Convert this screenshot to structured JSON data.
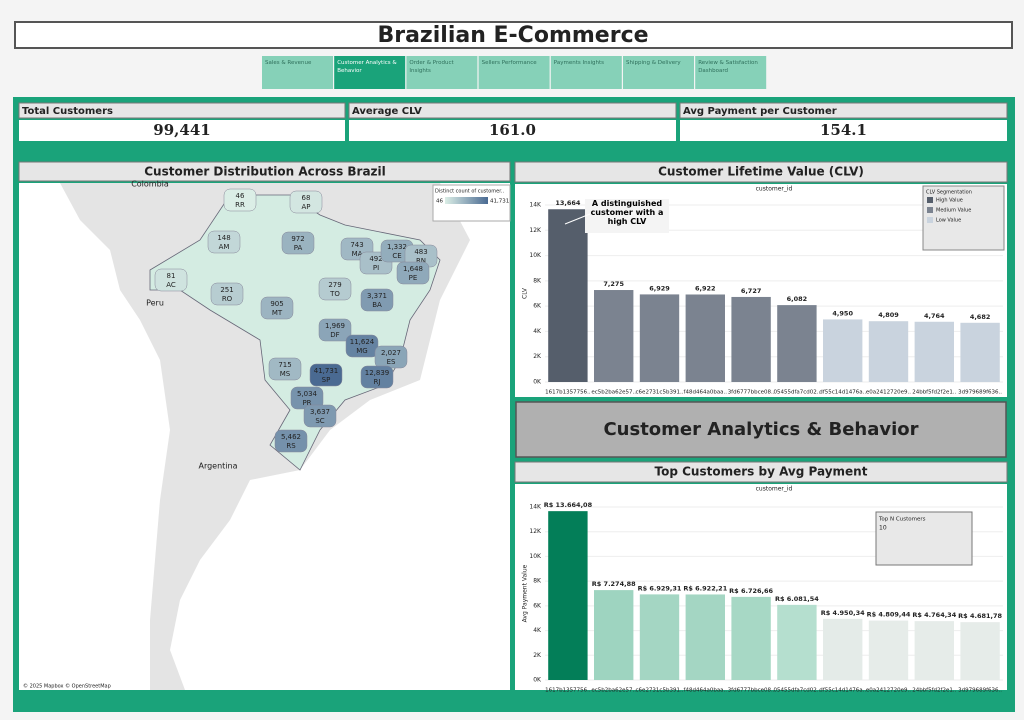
{
  "header": {
    "title": "Brazilian E-Commerce"
  },
  "nav": {
    "tabs": [
      "Sales & Revenue",
      "Customer Analytics & Behavior",
      "Order & Product Insights",
      "Sellers Performance",
      "Payments Insights",
      "Shipping & Delivery",
      "Review & Satisfaction Dashboard"
    ]
  },
  "kpis": [
    {
      "title": "Total Customers",
      "value": "99,441"
    },
    {
      "title": "Average CLV",
      "value": "161.0"
    },
    {
      "title": "Avg Payment per Customer",
      "value": "154.1"
    }
  ],
  "map": {
    "title": "Customer Distribution Across Brazil",
    "states": [
      "RR",
      "AP",
      "AM",
      "PA",
      "AC",
      "RO",
      "MA",
      "PI",
      "CE",
      "RN",
      "PE",
      "TO",
      "BA",
      "MT",
      "DF",
      "MG",
      "ES",
      "MS",
      "SP",
      "RJ",
      "PR",
      "SC",
      "RS"
    ],
    "values": [
      46,
      68,
      148,
      972,
      81,
      251,
      743,
      492,
      1332,
      483,
      1648,
      279,
      3371,
      905,
      1969,
      11624,
      2027,
      715,
      41731,
      12839,
      5034,
      3637,
      5462
    ],
    "value_labels": [
      "46",
      "68",
      "148",
      "972",
      "81",
      "251",
      "743",
      "492",
      "1,332",
      "483",
      "1,648",
      "279",
      "3,371",
      "905",
      "1,969",
      "11,624",
      "2,027",
      "715",
      "41,731",
      "12,839",
      "5,034",
      "3,637",
      "5,462"
    ],
    "legend_title": "Distinct count of customer..",
    "color_low": "#dbeee6",
    "color_high": "#4a6a92",
    "country_labels": [
      "Colombia",
      "Peru",
      "Argentina"
    ],
    "credit": "© 2025 Mapbox © OpenStreetMap"
  },
  "banner": "Customer Analytics & Behavior",
  "chart_data": [
    {
      "type": "bar",
      "title": "Customer Lifetime Value (CLV)",
      "x_label": "customer_id",
      "y_label": "CLV",
      "categories": [
        "1617b1357756..",
        "ec5b2ba62e57..",
        "c6e2731c5b391..",
        "f48d464a0baa..",
        "3fd6777bbce08..",
        "05455dfa7cd02..",
        "df55c14d1476a..",
        "e0a2412720e9..",
        "24bbf5fd2f2e1..",
        "3d979689f636.."
      ],
      "values": [
        13664,
        7275,
        6929,
        6922,
        6727,
        6082,
        4950,
        4809,
        4764,
        4682
      ],
      "value_labels": [
        "13,664",
        "7,275",
        "6,929",
        "6,922",
        "6,727",
        "6,082",
        "4,950",
        "4,809",
        "4,764",
        "4,682"
      ],
      "colors": [
        "#555e6b",
        "#7b8390",
        "#7b8390",
        "#7b8390",
        "#7b8390",
        "#7b8390",
        "#c9d3de",
        "#c9d3de",
        "#c9d3de",
        "#c9d3de"
      ],
      "ylim": [
        0,
        14000
      ],
      "yticks": [
        {
          "value": 0,
          "label": "0K"
        },
        {
          "value": 2000,
          "label": "2K"
        },
        {
          "value": 4000,
          "label": "4K"
        },
        {
          "value": 6000,
          "label": "6K"
        },
        {
          "value": 8000,
          "label": "8K"
        },
        {
          "value": 10000,
          "label": "10K"
        },
        {
          "value": 12000,
          "label": "12K"
        },
        {
          "value": 14000,
          "label": "14K"
        }
      ],
      "grid": true,
      "legend": {
        "title": "CLV Segmentation",
        "items": [
          {
            "name": "High Value",
            "color": "#555e6b"
          },
          {
            "name": "Medium Value",
            "color": "#7b8390"
          },
          {
            "name": "Low Value",
            "color": "#c9d3de"
          }
        ]
      },
      "annotation": "A distinguished customer with a high CLV"
    },
    {
      "type": "bar",
      "title": "Top Customers by Avg Payment",
      "x_label": "customer_id",
      "y_label": "Avg Payment Value",
      "categories": [
        "1617b1357756..",
        "ec5b2ba62e57..",
        "c6e2731c5b391..",
        "f48d464a0baa..",
        "3fd6777bbce08..",
        "05455dfa7cd02..",
        "df55c14d1476a..",
        "e0a2412720e9..",
        "24bbf5fd2f2e1..",
        "3d979689f636.."
      ],
      "values": [
        13664.08,
        7274.88,
        6929.31,
        6922.21,
        6726.66,
        6081.54,
        4950.34,
        4809.44,
        4764.34,
        4681.78
      ],
      "value_labels": [
        "R$ 13.664,08",
        "R$ 7.274,88",
        "R$ 6.929,31",
        "R$ 6.922,21",
        "R$ 6.726,66",
        "R$ 6.081,54",
        "R$ 4.950,34",
        "R$ 4.809,44",
        "R$ 4.764,34",
        "R$ 4.681,78"
      ],
      "colors": [
        "#037e58",
        "#9ed4c0",
        "#a4d6c3",
        "#a4d6c3",
        "#a7d8c5",
        "#b5dfcf",
        "#e4ebe8",
        "#e6ece9",
        "#e6ece9",
        "#e6ece9"
      ],
      "ylim": [
        0,
        14000
      ],
      "yticks": [
        {
          "value": 0,
          "label": "0K"
        },
        {
          "value": 2000,
          "label": "2K"
        },
        {
          "value": 4000,
          "label": "4K"
        },
        {
          "value": 6000,
          "label": "6K"
        },
        {
          "value": 8000,
          "label": "8K"
        },
        {
          "value": 10000,
          "label": "10K"
        },
        {
          "value": 12000,
          "label": "12K"
        },
        {
          "value": 14000,
          "label": "14K"
        }
      ],
      "grid": true,
      "filter": {
        "title": "Top N Customers",
        "value": "10"
      }
    }
  ]
}
